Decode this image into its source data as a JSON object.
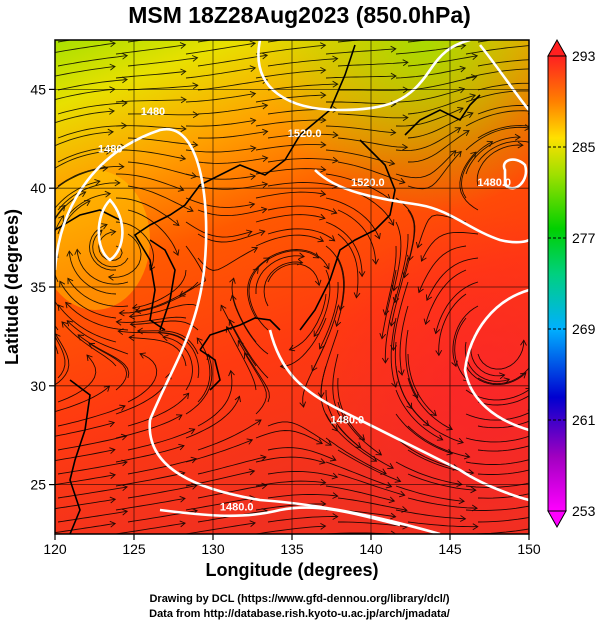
{
  "title": "MSM 18Z28Aug2023 (850.0hPa)",
  "map": {
    "x_axis": {
      "label": "Longitude (degrees)",
      "range": [
        120,
        150
      ],
      "ticks": [
        120,
        125,
        130,
        135,
        140,
        145,
        150
      ]
    },
    "y_axis": {
      "label": "Latitude  (degrees)",
      "range": [
        22.5,
        47.5
      ],
      "ticks": [
        25,
        30,
        35,
        40,
        45
      ]
    },
    "grid": true,
    "contour_labels": [
      {
        "text": "1480",
        "lon": 126.2,
        "lat": 43.7
      },
      {
        "text": "1480",
        "lon": 123.5,
        "lat": 41.8
      },
      {
        "text": "1520.0",
        "lon": 135.8,
        "lat": 42.6
      },
      {
        "text": "1520.0",
        "lon": 139.8,
        "lat": 40.1
      },
      {
        "text": "1480.0",
        "lon": 147.8,
        "lat": 40.1
      },
      {
        "text": "1480.0",
        "lon": 138.5,
        "lat": 28.1
      },
      {
        "text": "1480.0",
        "lon": 131.5,
        "lat": 23.7
      }
    ]
  },
  "colorbar": {
    "min": 253,
    "max": 293,
    "tick_labels": [
      "293",
      "285",
      "277",
      "269",
      "261",
      "253"
    ]
  },
  "credits": {
    "line1": "Drawing by DCL (https://www.gfd-dennou.org/library/dcl/)",
    "line2": "Data from http://database.rish.kyoto-u.ac.jp/arch/jmadata/"
  }
}
